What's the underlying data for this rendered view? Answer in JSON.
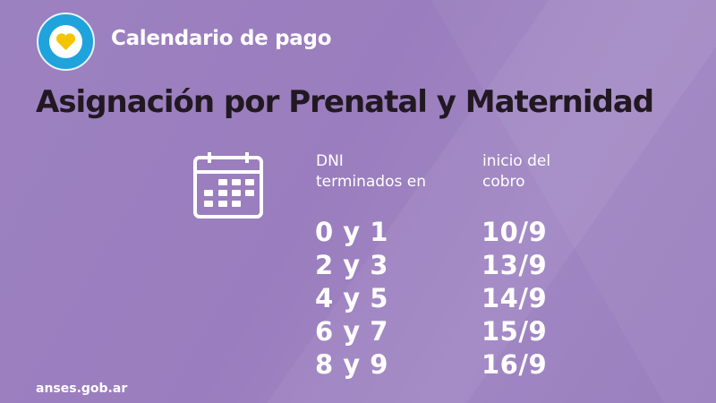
{
  "header": {
    "subtitle": "Calendario de pago",
    "title": "Asignación por Prenatal y Maternidad"
  },
  "table": {
    "col1_header": [
      "DNI",
      "terminados en"
    ],
    "col2_header": [
      "inicio del",
      "cobro"
    ],
    "rows": [
      {
        "dni": "0 y 1",
        "date": "10/9"
      },
      {
        "dni": "2 y 3",
        "date": "13/9"
      },
      {
        "dni": "4 y 5",
        "date": "14/9"
      },
      {
        "dni": "6 y 7",
        "date": "15/9"
      },
      {
        "dni": "8 y 9",
        "date": "16/9"
      }
    ]
  },
  "footer": {
    "url": "anses.gob.ar"
  },
  "colors": {
    "background": "#9b7fbf",
    "title": "#221822",
    "logo_ring": "#1fa3dc",
    "heart": "#f5c400"
  },
  "icons": {
    "logo": "heart-icon",
    "calendar": "calendar-icon"
  }
}
